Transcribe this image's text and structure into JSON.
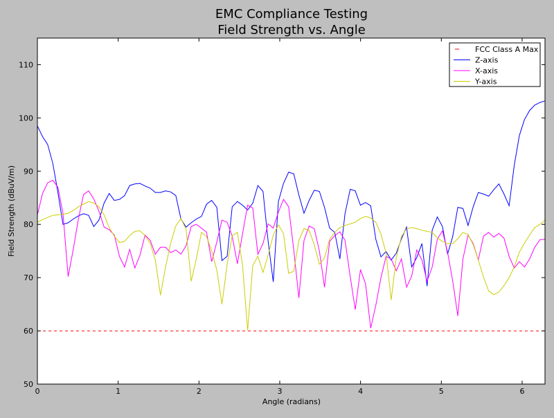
{
  "chart_data": {
    "type": "line",
    "title": "EMC Compliance Testing",
    "subtitle": "Field Strength vs. Angle",
    "xlabel": "Angle (radians)",
    "ylabel": "Field Strength (dBuV/m)",
    "xlim": [
      0,
      6.2832
    ],
    "ylim": [
      50,
      115
    ],
    "xticks": [
      0,
      1,
      2,
      3,
      4,
      5,
      6
    ],
    "yticks": [
      50,
      60,
      70,
      80,
      90,
      100,
      110
    ],
    "grid": false,
    "legend_position": "top-right",
    "x": [
      0.0,
      0.0635,
      0.1269,
      0.1904,
      0.2539,
      0.3173,
      0.3808,
      0.4443,
      0.5077,
      0.5712,
      0.6347,
      0.6981,
      0.7616,
      0.8251,
      0.8885,
      0.952,
      1.0155,
      1.0789,
      1.1424,
      1.2059,
      1.2693,
      1.3328,
      1.3963,
      1.4597,
      1.5232,
      1.5867,
      1.6501,
      1.7136,
      1.7771,
      1.8405,
      1.904,
      1.9675,
      2.0309,
      2.0944,
      2.1579,
      2.2213,
      2.2848,
      2.3483,
      2.4117,
      2.4752,
      2.5387,
      2.6021,
      2.6656,
      2.7291,
      2.7925,
      2.856,
      2.9195,
      2.9829,
      3.0464,
      3.1099,
      3.1733,
      3.2368,
      3.3003,
      3.3637,
      3.4272,
      3.4907,
      3.5541,
      3.6176,
      3.6811,
      3.7445,
      3.808,
      3.8715,
      3.9349,
      3.9984,
      4.0619,
      4.1253,
      4.1888,
      4.2523,
      4.3157,
      4.3792,
      4.4427,
      4.5061,
      4.5696,
      4.6331,
      4.6965,
      4.76,
      4.8235,
      4.8869,
      4.9504,
      5.0139,
      5.0773,
      5.1408,
      5.2043,
      5.2677,
      5.3312,
      5.3947,
      5.4581,
      5.5216,
      5.5851,
      5.6485,
      5.712,
      5.7755,
      5.8389,
      5.9024,
      5.9659,
      6.0293,
      6.0928,
      6.1563,
      6.2197,
      6.2832
    ],
    "series": [
      {
        "name": "FCC Class A Max",
        "color": "#ff0000",
        "style": "dashed",
        "x": [
          0,
          6.2832
        ],
        "values": [
          60,
          60
        ]
      },
      {
        "name": "Z-axis",
        "color": "#0000ff",
        "style": "solid",
        "values": [
          98.5,
          96.5,
          95.0,
          91.5,
          86.0,
          80.0,
          80.3,
          81.0,
          81.6,
          82.0,
          81.7,
          79.6,
          80.8,
          84.0,
          85.8,
          84.5,
          84.7,
          85.4,
          87.3,
          87.6,
          87.7,
          87.2,
          86.8,
          86.0,
          86.0,
          86.3,
          86.1,
          85.4,
          81.0,
          79.5,
          80.3,
          81.0,
          81.5,
          83.8,
          84.5,
          83.2,
          73.2,
          74.0,
          83.3,
          84.3,
          83.6,
          82.7,
          84.0,
          87.3,
          86.2,
          76.8,
          69.2,
          84.3,
          87.7,
          89.8,
          89.5,
          85.5,
          82.1,
          84.5,
          86.4,
          86.2,
          83.2,
          79.3,
          78.5,
          73.5,
          82.0,
          86.6,
          86.3,
          83.6,
          84.1,
          83.5,
          77.2,
          73.9,
          74.9,
          73.3,
          74.6,
          77.3,
          79.5,
          72.0,
          73.8,
          76.4,
          68.4,
          78.9,
          81.4,
          79.6,
          74.4,
          77.7,
          83.2,
          83.0,
          79.8,
          83.3,
          86.0,
          85.7,
          85.3,
          86.5,
          87.6,
          85.7,
          83.5,
          91.1,
          96.7,
          99.7,
          101.4,
          102.4,
          102.9,
          103.2
        ]
      },
      {
        "name": "X-axis",
        "color": "#ff00ff",
        "style": "solid",
        "values": [
          81.8,
          85.8,
          87.8,
          88.3,
          87.0,
          82.0,
          70.2,
          75.3,
          81.0,
          85.6,
          86.3,
          84.8,
          82.5,
          79.5,
          79.0,
          78.0,
          74.0,
          72.0,
          75.3,
          71.8,
          74.2,
          78.0,
          77.0,
          74.4,
          75.7,
          75.7,
          74.7,
          75.2,
          74.4,
          76.0,
          79.6,
          80.0,
          79.3,
          78.5,
          73.0,
          76.7,
          80.8,
          80.4,
          77.8,
          72.6,
          78.2,
          83.6,
          83.1,
          74.4,
          76.4,
          80.1,
          79.3,
          82.3,
          84.7,
          83.3,
          75.2,
          66.2,
          77.0,
          79.7,
          79.2,
          75.0,
          68.2,
          76.8,
          77.9,
          78.6,
          77.0,
          70.2,
          64.0,
          71.5,
          68.8,
          60.5,
          64.8,
          70.0,
          74.0,
          73.5,
          71.3,
          73.5,
          68.2,
          70.3,
          75.2,
          73.3,
          69.3,
          72.0,
          77.2,
          78.8,
          74.8,
          69.4,
          62.8,
          73.5,
          78.0,
          76.4,
          73.3,
          77.8,
          78.5,
          77.6,
          78.3,
          77.4,
          74.0,
          71.8,
          73.0,
          72.0,
          73.5,
          75.7,
          77.1,
          77.2
        ]
      },
      {
        "name": "Y-axis",
        "color": "#cccc00",
        "style": "solid",
        "values": [
          80.4,
          80.9,
          81.3,
          81.7,
          81.8,
          81.9,
          82.1,
          82.6,
          83.3,
          83.8,
          84.3,
          84.0,
          83.3,
          81.8,
          79.4,
          77.8,
          76.6,
          76.8,
          77.9,
          78.7,
          78.8,
          77.9,
          76.4,
          73.3,
          66.7,
          72.0,
          76.5,
          79.7,
          81.1,
          79.1,
          69.3,
          73.5,
          78.5,
          77.7,
          75.0,
          71.4,
          65.0,
          72.5,
          77.9,
          78.5,
          72.4,
          60.1,
          72.3,
          74.0,
          71.0,
          74.2,
          78.0,
          79.9,
          78.3,
          70.8,
          71.2,
          77.0,
          79.2,
          78.9,
          76.2,
          72.5,
          73.7,
          77.2,
          78.5,
          79.4,
          79.8,
          80.1,
          80.4,
          81.1,
          81.5,
          81.2,
          80.4,
          78.2,
          74.6,
          65.8,
          73.8,
          77.7,
          79.2,
          79.4,
          79.2,
          78.9,
          78.7,
          78.5,
          77.5,
          76.8,
          76.4,
          76.4,
          77.3,
          78.5,
          78.1,
          76.2,
          73.3,
          70.1,
          67.5,
          66.8,
          67.3,
          68.5,
          70.0,
          72.0,
          74.8,
          76.5,
          78.0,
          79.4,
          80.0,
          80.8
        ]
      }
    ]
  }
}
